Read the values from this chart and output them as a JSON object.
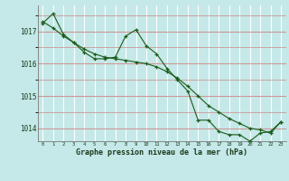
{
  "title": "Graphe pression niveau de la mer (hPa)",
  "background_color": "#c5e8e8",
  "line_color": "#1a5c1a",
  "grid_color_h": "#cc9999",
  "grid_color_v": "#ffffff",
  "y_ticks": [
    1014,
    1015,
    1016,
    1017
  ],
  "y_minor_ticks": [
    1013.5,
    1014.5,
    1015.5,
    1016.5,
    1017.5
  ],
  "ylim": [
    1013.6,
    1017.8
  ],
  "xlim": [
    -0.5,
    23.5
  ],
  "x_labels": [
    "0",
    "1",
    "2",
    "3",
    "4",
    "5",
    "6",
    "7",
    "8",
    "9",
    "10",
    "11",
    "12",
    "13",
    "14",
    "15",
    "16",
    "17",
    "18",
    "19",
    "20",
    "21",
    "22",
    "23"
  ],
  "line1_x": [
    0,
    1,
    2,
    3,
    4,
    5,
    6,
    7,
    8,
    9,
    10,
    11,
    12,
    13,
    14,
    15,
    16,
    17,
    18,
    19,
    20,
    21,
    22,
    23
  ],
  "line1_y": [
    1017.25,
    1017.55,
    1016.9,
    1016.65,
    1016.35,
    1016.15,
    1016.15,
    1016.2,
    1016.85,
    1017.05,
    1016.55,
    1016.3,
    1015.85,
    1015.5,
    1015.15,
    1014.25,
    1014.25,
    1013.9,
    1013.8,
    1013.8,
    1013.6,
    1013.85,
    1013.9,
    1014.2
  ],
  "line2_x": [
    0,
    1,
    2,
    3,
    4,
    5,
    6,
    7,
    8,
    9,
    10,
    11,
    12,
    13,
    14,
    15,
    16,
    17,
    18,
    19,
    20,
    21,
    22,
    23
  ],
  "line2_y": [
    1017.3,
    1017.1,
    1016.85,
    1016.65,
    1016.45,
    1016.3,
    1016.2,
    1016.15,
    1016.1,
    1016.05,
    1016.0,
    1015.9,
    1015.75,
    1015.55,
    1015.3,
    1015.0,
    1014.7,
    1014.5,
    1014.3,
    1014.15,
    1014.0,
    1013.95,
    1013.85,
    1014.2
  ]
}
